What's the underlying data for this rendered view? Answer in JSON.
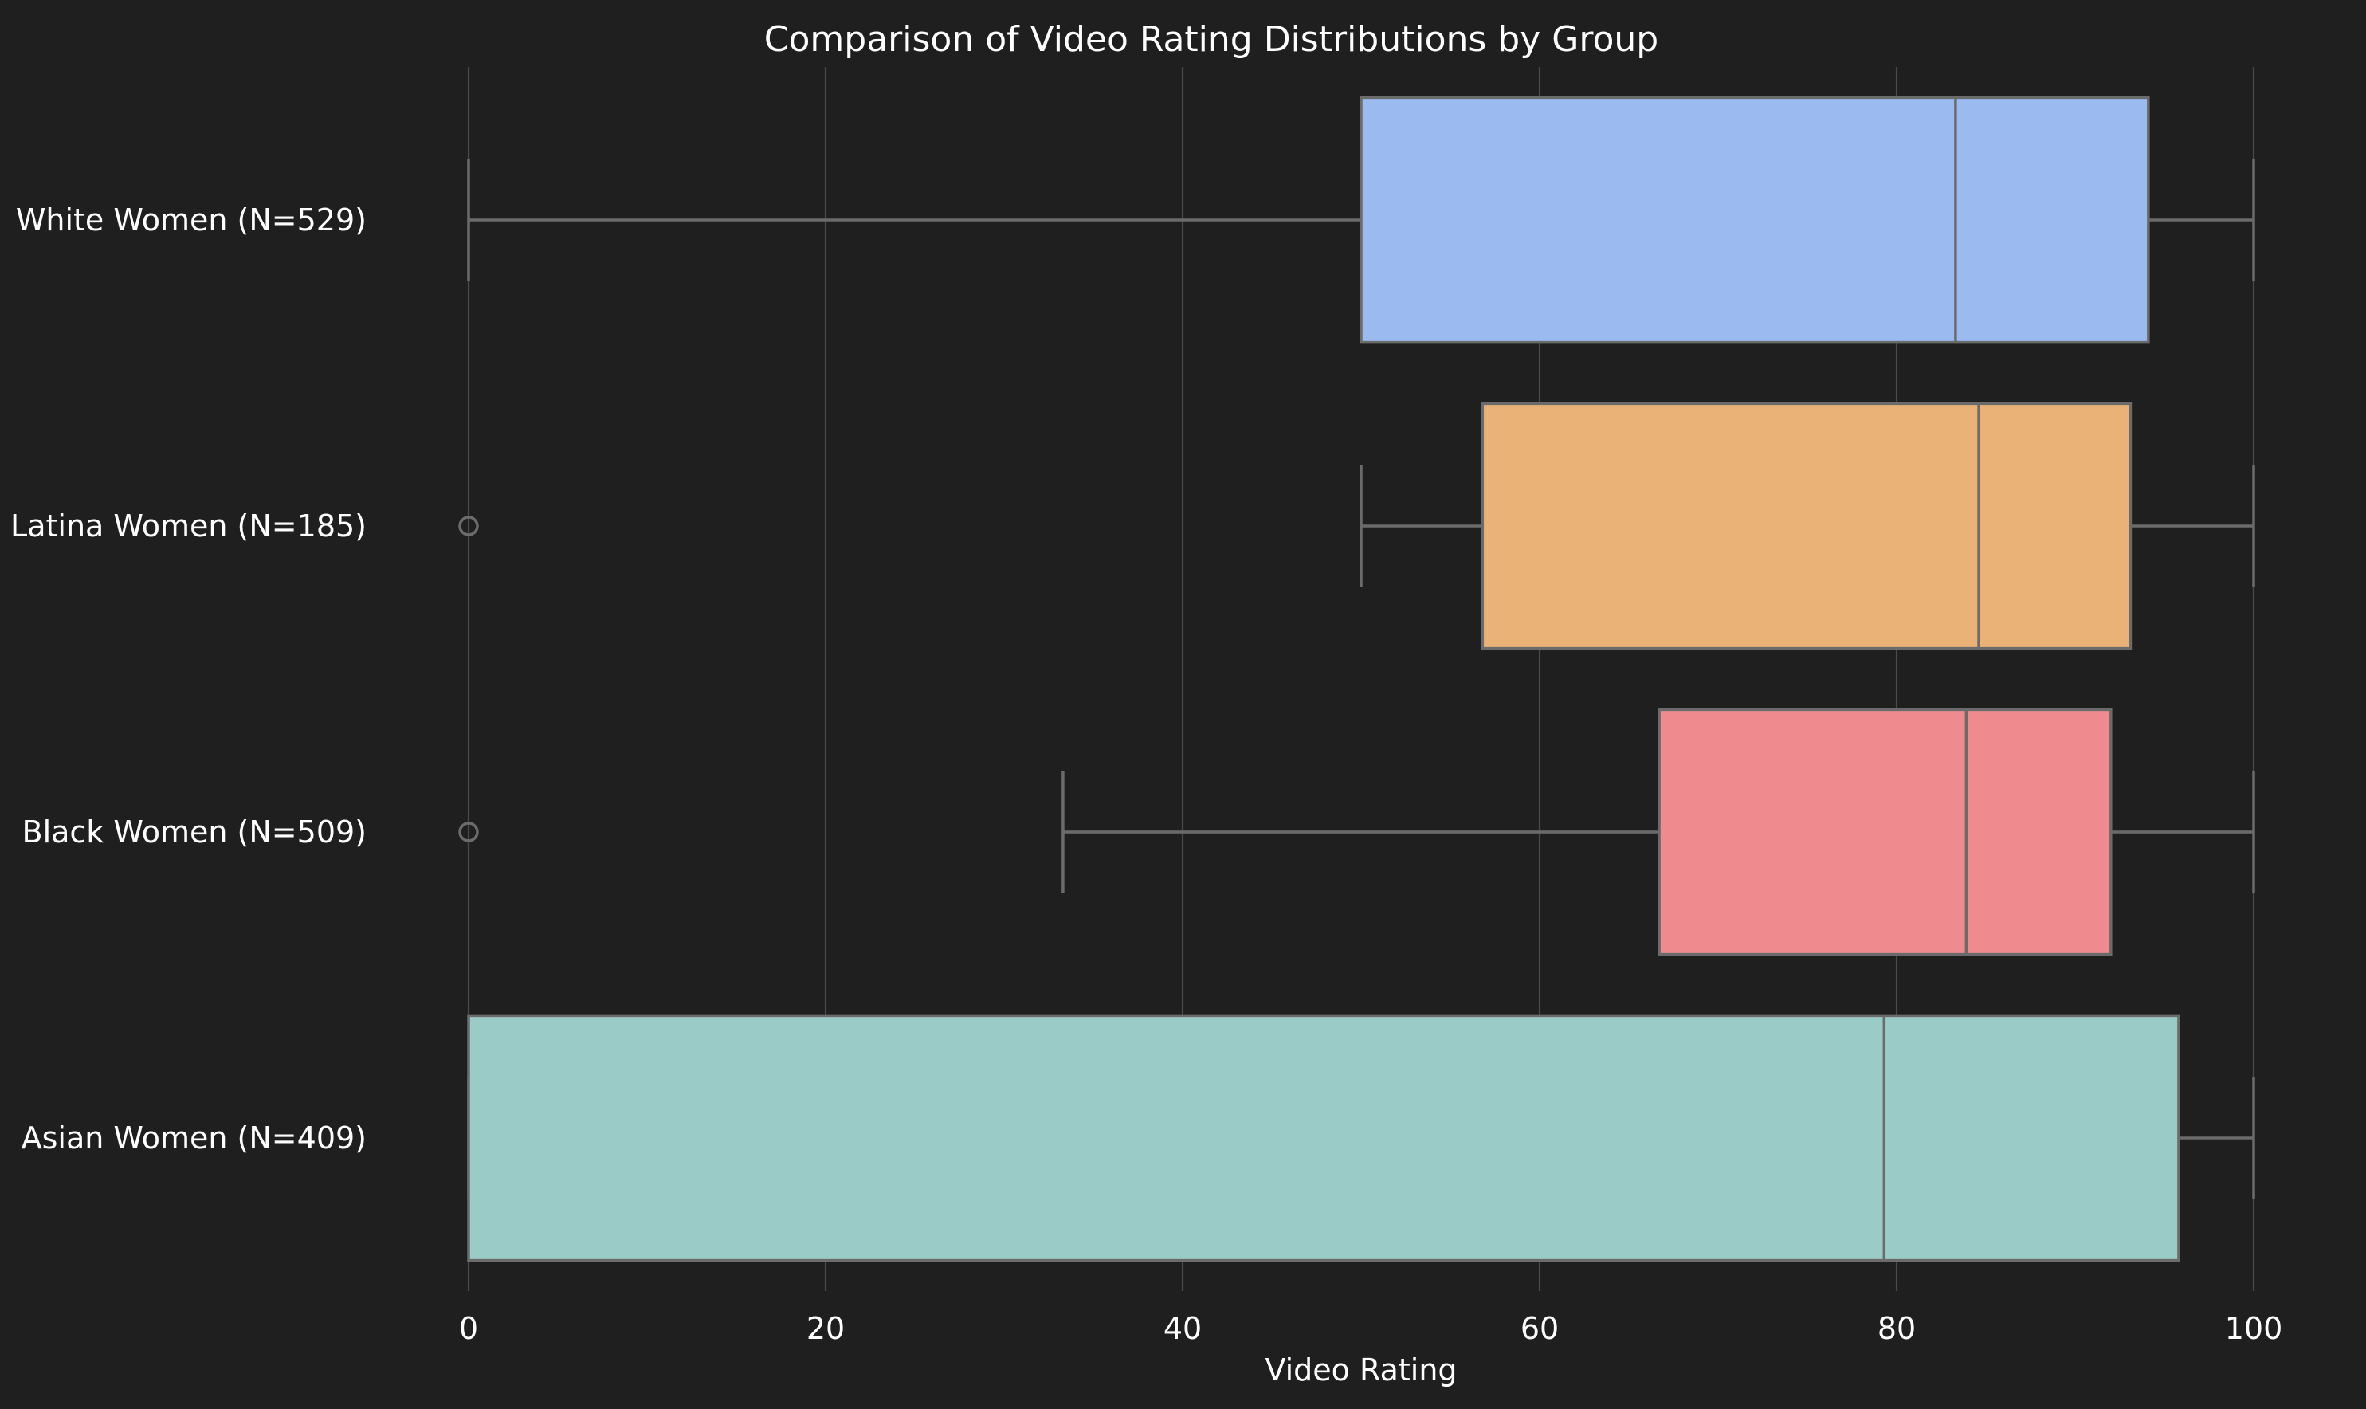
{
  "colors": {
    "background": "#1f1f1f",
    "grid": "#4a4a4a",
    "box_edge": "#6b6b6b",
    "text": "#ffffff"
  },
  "chart_data": {
    "type": "boxplot",
    "orientation": "horizontal",
    "title": "Comparison of Video Rating Distributions by Group",
    "xlabel": "Video Rating",
    "ylabel": "",
    "xlim": [
      0,
      100
    ],
    "xticks": [
      0,
      20,
      40,
      60,
      80,
      100
    ],
    "grid": "vertical",
    "legend": "none",
    "categories": [
      "White Women (N=529)",
      "Latina Women (N=185)",
      "Black Women (N=509)",
      "Asian Women (N=409)"
    ],
    "series": [
      {
        "category": "White Women (N=529)",
        "color": "#9bbbf0",
        "whisker_low": 0,
        "q1": 50,
        "median": 83.3,
        "q3": 94.1,
        "whisker_high": 100,
        "outliers": []
      },
      {
        "category": "Latina Women (N=185)",
        "color": "#ebb277",
        "whisker_low": 50,
        "q1": 56.8,
        "median": 84.6,
        "q3": 93.1,
        "whisker_high": 100,
        "outliers": [
          0
        ]
      },
      {
        "category": "Black Women (N=509)",
        "color": "#ef8a8f",
        "whisker_low": 33.3,
        "q1": 66.7,
        "median": 83.9,
        "q3": 92,
        "whisker_high": 100,
        "outliers": [
          0
        ]
      },
      {
        "category": "Asian Women (N=409)",
        "color": "#9acbc7",
        "whisker_low": 0,
        "q1": 0,
        "median": 79.3,
        "q3": 95.8,
        "whisker_high": 100,
        "outliers": []
      }
    ]
  }
}
